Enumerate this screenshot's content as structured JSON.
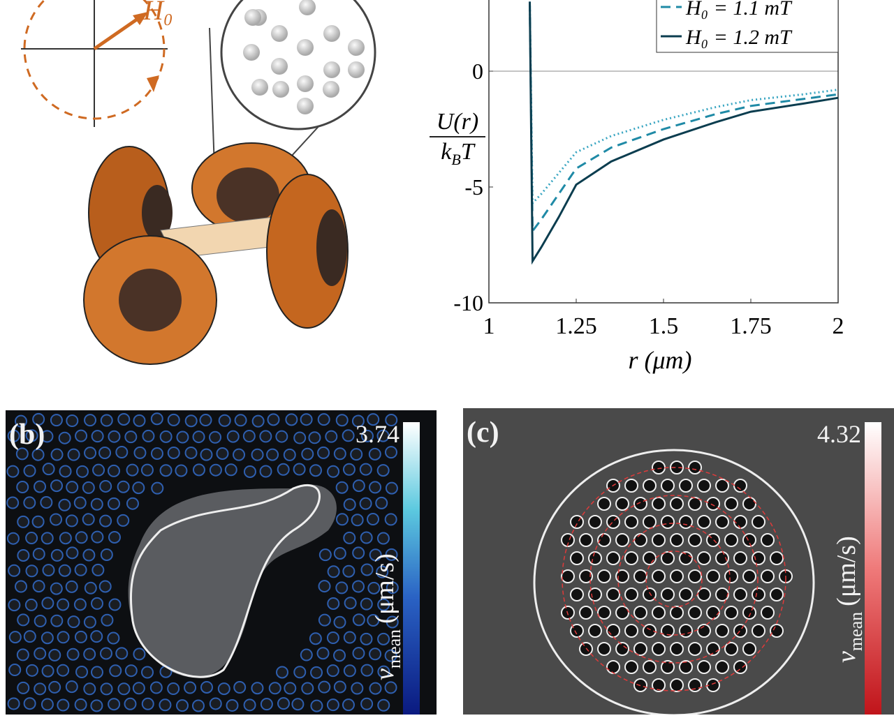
{
  "diagram": {
    "field_label": "H₀"
  },
  "chart_data": {
    "type": "line",
    "x_label": "r (μm)",
    "y_label": {
      "numerator": "U(r)",
      "denominator": [
        "k",
        "B",
        "T"
      ]
    },
    "x": [
      1.117,
      1.125,
      1.15,
      1.2,
      1.25,
      1.35,
      1.5,
      1.65,
      1.75,
      1.9,
      2
    ],
    "series": [
      {
        "color": "#3aa6c2",
        "style": "dotted",
        "values": [
          3,
          -5.7,
          -5.3,
          -4.4,
          -3.5,
          -2.8,
          -2.1,
          -1.55,
          -1.25,
          -1.0,
          -0.8
        ]
      },
      {
        "name": "H₀ = 1.1 mT",
        "color": "#1f8aa6",
        "style": "dashed",
        "values": [
          3,
          -6.9,
          -6.4,
          -5.3,
          -4.2,
          -3.3,
          -2.5,
          -1.85,
          -1.5,
          -1.2,
          -1.0
        ]
      },
      {
        "name": "H₀ = 1.2 mT",
        "color": "#0b3d4f",
        "style": "solid",
        "values": [
          3,
          -8.2,
          -7.6,
          -6.3,
          -4.9,
          -3.9,
          -2.95,
          -2.2,
          -1.75,
          -1.4,
          -1.15
        ]
      }
    ],
    "xlim": [
      1,
      2
    ],
    "ylim": [
      -10,
      3
    ],
    "xticks": [
      1,
      1.25,
      1.5,
      1.75,
      2
    ],
    "yticks": [
      0,
      -5,
      -10
    ],
    "zero_line": true
  },
  "panels": [
    {
      "label": "(b)",
      "colorbar_max": "3.74",
      "colorbar": {
        "symbol": "v",
        "sub": "mean",
        "unit": "(μm/s)"
      },
      "color": "#1d3fa8"
    },
    {
      "label": "(c)",
      "colorbar_max": "4.32",
      "colorbar": {
        "symbol": "v",
        "sub": "mean",
        "unit": "(μm/s)"
      },
      "color": "#d8282a"
    }
  ]
}
